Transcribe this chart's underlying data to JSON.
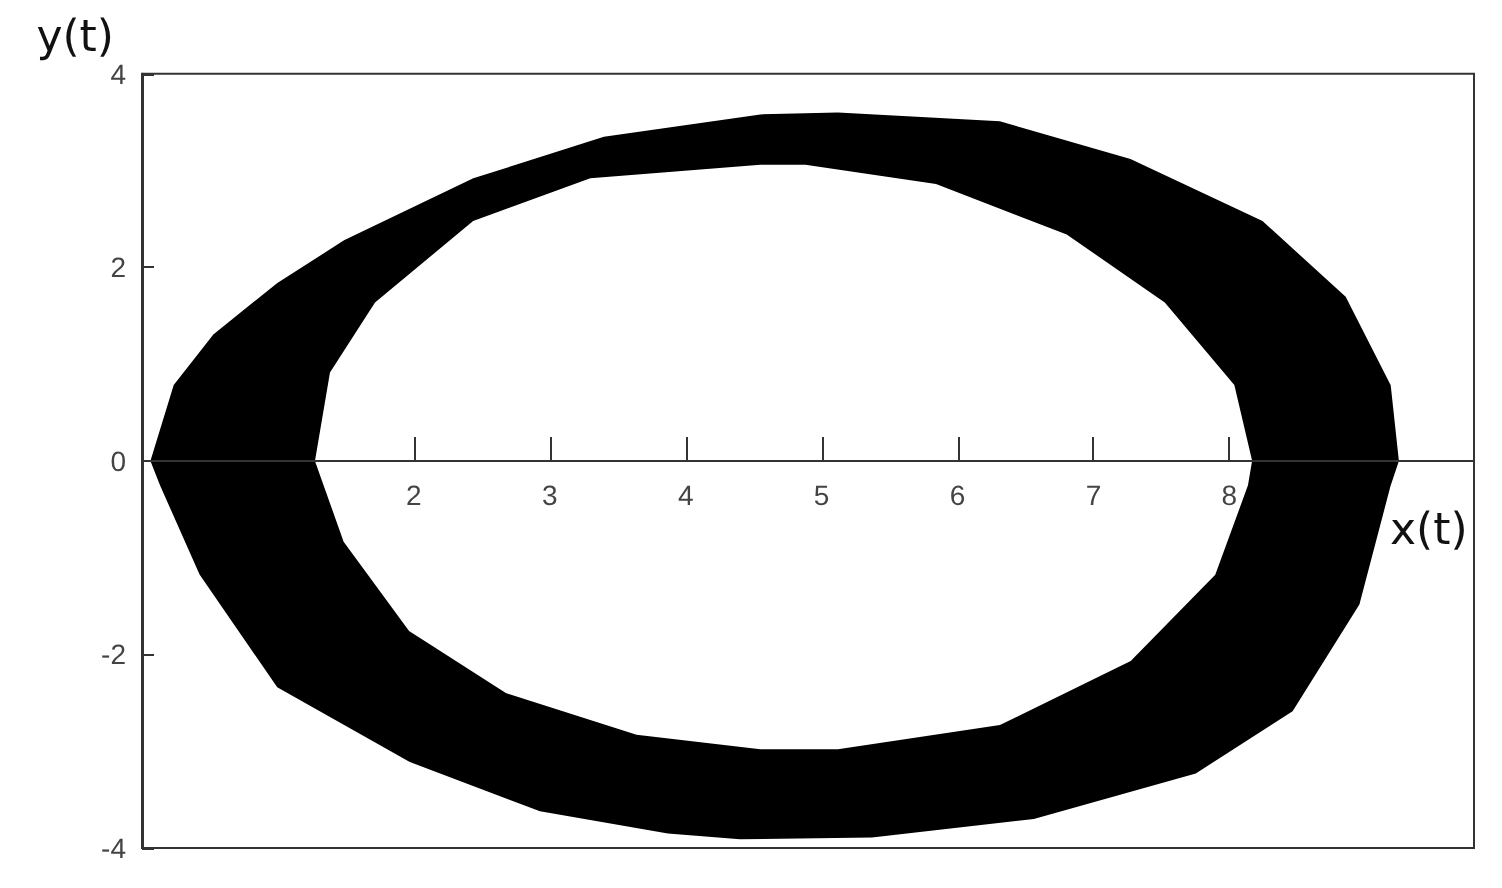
{
  "chart_data": {
    "type": "area",
    "xlabel": "x(t)",
    "ylabel": "y(t)",
    "xlim": [
      0,
      9.8
    ],
    "ylim": [
      -4,
      4
    ],
    "xticks": [
      2,
      3,
      4,
      5,
      6,
      7,
      8
    ],
    "yticks": [
      -4,
      -2,
      0,
      2,
      4
    ],
    "series": [
      {
        "color": "#000000",
        "x": [
          0.07,
          0.24,
          0.53,
          1.0,
          1.49,
          2.44,
          3.4,
          4.55,
          5.12,
          6.31,
          7.27,
          8.24,
          8.85,
          9.18,
          9.24,
          9.18,
          8.95,
          8.46,
          7.75,
          6.56,
          5.37,
          4.4,
          3.87,
          2.93,
          1.97,
          1.0,
          0.43,
          0.14
        ],
        "values": [
          0,
          0.78,
          1.3,
          1.83,
          2.27,
          2.91,
          3.34,
          3.57,
          3.59,
          3.5,
          3.11,
          2.47,
          1.69,
          0.78,
          0,
          -0.25,
          -1.48,
          -2.58,
          -3.22,
          -3.69,
          -3.88,
          -3.9,
          -3.84,
          -3.61,
          -3.1,
          -2.33,
          -1.17,
          -0.25
        ]
      },
      {
        "color": "#ffffff",
        "x": [
          1.28,
          1.39,
          1.72,
          2.44,
          3.3,
          4.55,
          4.88,
          5.84,
          6.8,
          7.52,
          8.03,
          8.16,
          8.13,
          7.89,
          7.27,
          6.31,
          5.12,
          4.55,
          3.64,
          2.68,
          1.97,
          1.49
        ],
        "values": [
          0,
          0.91,
          1.63,
          2.47,
          2.91,
          3.05,
          3.05,
          2.85,
          2.33,
          1.63,
          0.78,
          0,
          -0.25,
          -1.17,
          -2.06,
          -2.72,
          -2.97,
          -2.97,
          -2.82,
          -2.39,
          -1.75,
          -0.83
        ]
      }
    ]
  }
}
